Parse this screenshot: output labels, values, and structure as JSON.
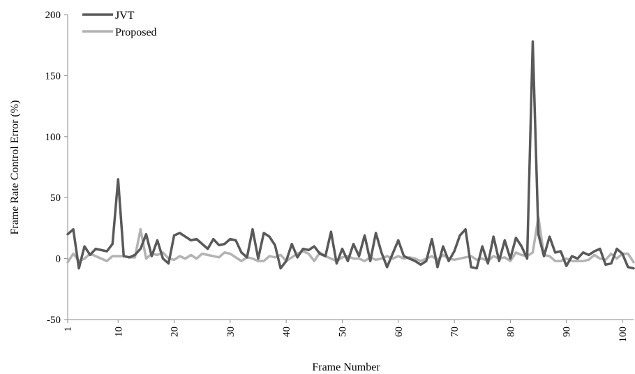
{
  "chart_data": {
    "type": "line",
    "title": "",
    "xlabel": "Frame Number",
    "ylabel": "Frame Rate Control Error (%)",
    "ylim": [
      -50,
      200
    ],
    "xlim": [
      1,
      102
    ],
    "yticks": [
      -50,
      0,
      50,
      100,
      150,
      200
    ],
    "xticks": [
      1,
      10,
      20,
      30,
      40,
      50,
      60,
      70,
      80,
      90,
      100
    ],
    "grid": false,
    "legend_position": "top-left",
    "colors": {
      "JVT": "#595959",
      "Proposed": "#b3b3b3"
    },
    "series": [
      {
        "name": "JVT",
        "x": [
          1,
          2,
          3,
          4,
          5,
          6,
          7,
          8,
          9,
          10,
          11,
          12,
          13,
          14,
          15,
          16,
          17,
          18,
          19,
          20,
          21,
          22,
          23,
          24,
          25,
          26,
          27,
          28,
          29,
          30,
          31,
          32,
          33,
          34,
          35,
          36,
          37,
          38,
          39,
          40,
          41,
          42,
          43,
          44,
          45,
          46,
          47,
          48,
          49,
          50,
          51,
          52,
          53,
          54,
          55,
          56,
          57,
          58,
          59,
          60,
          61,
          62,
          63,
          64,
          65,
          66,
          67,
          68,
          69,
          70,
          71,
          72,
          73,
          74,
          75,
          76,
          77,
          78,
          79,
          80,
          81,
          82,
          83,
          84,
          85,
          86,
          87,
          88,
          89,
          90,
          91,
          92,
          93,
          94,
          95,
          96,
          97,
          98,
          99,
          100,
          101,
          102
        ],
        "values": [
          20,
          24,
          -8,
          10,
          3,
          8,
          7,
          6,
          12,
          65,
          2,
          1,
          3,
          8,
          20,
          2,
          15,
          0,
          -4,
          19,
          21,
          18,
          15,
          16,
          12,
          8,
          16,
          11,
          12,
          16,
          15,
          5,
          1,
          24,
          0,
          21,
          18,
          11,
          -8,
          -2,
          12,
          1,
          8,
          7,
          10,
          4,
          2,
          22,
          -4,
          8,
          -2,
          12,
          2,
          19,
          -2,
          21,
          5,
          -7,
          4,
          15,
          2,
          0,
          -2,
          -5,
          -2,
          16,
          -7,
          10,
          -2,
          6,
          19,
          24,
          -7,
          -8,
          10,
          -4,
          18,
          -2,
          15,
          0,
          17,
          10,
          0,
          178,
          20,
          2,
          18,
          5,
          6,
          -6,
          2,
          0,
          5,
          3,
          6,
          8,
          -5,
          -4,
          8,
          4,
          -7,
          -8
        ]
      },
      {
        "name": "Proposed",
        "x": [
          1,
          2,
          3,
          4,
          5,
          6,
          7,
          8,
          9,
          10,
          11,
          12,
          13,
          14,
          15,
          16,
          17,
          18,
          19,
          20,
          21,
          22,
          23,
          24,
          25,
          26,
          27,
          28,
          29,
          30,
          31,
          32,
          33,
          34,
          35,
          36,
          37,
          38,
          39,
          40,
          41,
          42,
          43,
          44,
          45,
          46,
          47,
          48,
          49,
          50,
          51,
          52,
          53,
          54,
          55,
          56,
          57,
          58,
          59,
          60,
          61,
          62,
          63,
          64,
          65,
          66,
          67,
          68,
          69,
          70,
          71,
          72,
          73,
          74,
          75,
          76,
          77,
          78,
          79,
          80,
          81,
          82,
          83,
          84,
          85,
          86,
          87,
          88,
          89,
          90,
          91,
          92,
          93,
          94,
          95,
          96,
          97,
          98,
          99,
          100,
          101,
          102
        ],
        "values": [
          -3,
          4,
          -2,
          0,
          4,
          2,
          0,
          -2,
          2,
          2,
          2,
          1,
          1,
          24,
          0,
          4,
          3,
          5,
          0,
          -1,
          2,
          0,
          3,
          0,
          4,
          3,
          2,
          1,
          5,
          4,
          1,
          -2,
          1,
          0,
          -2,
          -2,
          2,
          1,
          3,
          -2,
          1,
          4,
          6,
          4,
          -2,
          5,
          2,
          0,
          -2,
          1,
          2,
          0,
          0,
          -2,
          1,
          -1,
          0,
          2,
          0,
          2,
          0,
          1,
          0,
          -2,
          0,
          2,
          -1,
          3,
          0,
          -1,
          0,
          1,
          2,
          -1,
          0,
          -2,
          2,
          0,
          1,
          -2,
          5,
          3,
          2,
          5,
          34,
          3,
          2,
          -2,
          -2,
          0,
          -2,
          -2,
          -2,
          -1,
          3,
          0,
          -1,
          4,
          0,
          4,
          4,
          -3
        ]
      }
    ]
  }
}
